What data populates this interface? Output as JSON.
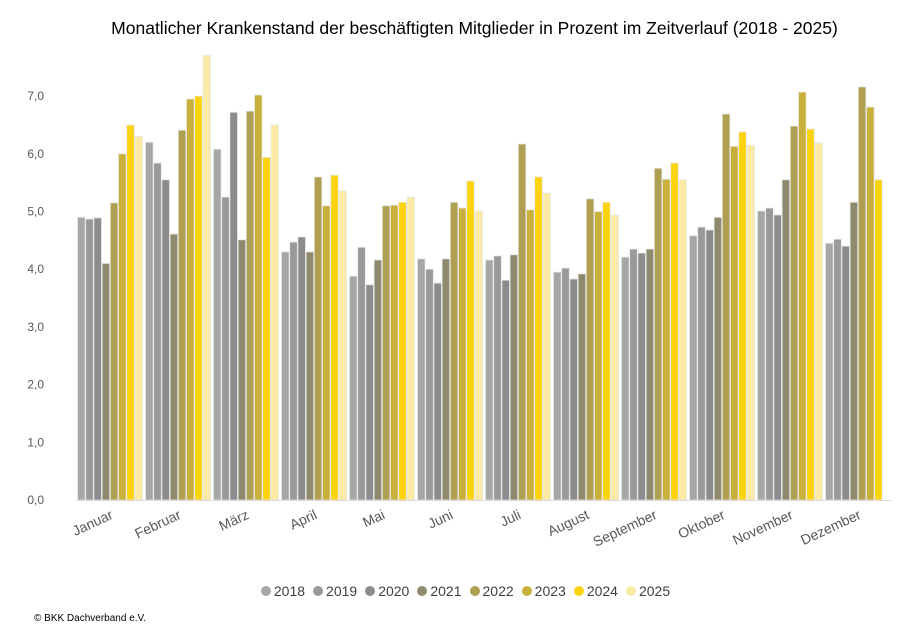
{
  "chart_data": {
    "type": "bar",
    "title": "Monatlicher Krankenstand der beschäftigten Mitglieder in Prozent im Zeitverlauf (2018 - 2025)",
    "xlabel": "",
    "ylabel": "",
    "ylim": [
      0,
      7.7
    ],
    "yticks": [
      "0,0",
      "1,0",
      "2,0",
      "3,0",
      "4,0",
      "5,0",
      "6,0",
      "7,0"
    ],
    "ytick_values": [
      0,
      1,
      2,
      3,
      4,
      5,
      6,
      7
    ],
    "grid": false,
    "legend_position": "bottom",
    "categories": [
      "Januar",
      "Februar",
      "März",
      "April",
      "Mai",
      "Juni",
      "Juli",
      "August",
      "September",
      "Oktober",
      "November",
      "Dezember"
    ],
    "series": [
      {
        "name": "2018",
        "color": "#a6a6a6",
        "values": [
          4.9,
          6.2,
          6.08,
          4.3,
          3.88,
          4.18,
          4.16,
          3.95,
          4.21,
          4.58,
          5.01,
          4.45
        ]
      },
      {
        "name": "2019",
        "color": "#999999",
        "values": [
          4.87,
          5.84,
          5.25,
          4.47,
          4.38,
          4.0,
          4.23,
          4.02,
          4.35,
          4.73,
          5.06,
          4.52
        ]
      },
      {
        "name": "2020",
        "color": "#8c8c8c",
        "values": [
          4.89,
          5.55,
          6.72,
          4.56,
          3.73,
          3.76,
          3.81,
          3.83,
          4.28,
          4.68,
          4.94,
          4.4
        ]
      },
      {
        "name": "2021",
        "color": "#8f8a6e",
        "values": [
          4.1,
          4.61,
          4.51,
          4.3,
          4.16,
          4.18,
          4.25,
          3.92,
          4.35,
          4.9,
          5.55,
          5.16
        ]
      },
      {
        "name": "2022",
        "color": "#aea050",
        "values": [
          5.15,
          6.41,
          6.74,
          5.6,
          5.1,
          5.16,
          6.17,
          5.22,
          5.75,
          6.69,
          6.48,
          7.16
        ]
      },
      {
        "name": "2023",
        "color": "#c8b03a",
        "values": [
          6.0,
          6.95,
          7.02,
          5.1,
          5.11,
          5.06,
          5.03,
          5.0,
          5.56,
          6.13,
          7.07,
          6.81
        ]
      },
      {
        "name": "2024",
        "color": "#fcd30f",
        "values": [
          6.5,
          7.0,
          5.94,
          5.63,
          5.16,
          5.53,
          5.6,
          5.16,
          5.84,
          6.38,
          6.43,
          5.55
        ]
      },
      {
        "name": "2025",
        "color": "#fbeaa6",
        "values": [
          6.3,
          7.71,
          6.5,
          5.36,
          5.25,
          5.01,
          5.32,
          4.94,
          5.55,
          6.15,
          6.19,
          null
        ]
      }
    ]
  },
  "footer": {
    "copyright": "© BKK Dachverband e.V."
  }
}
